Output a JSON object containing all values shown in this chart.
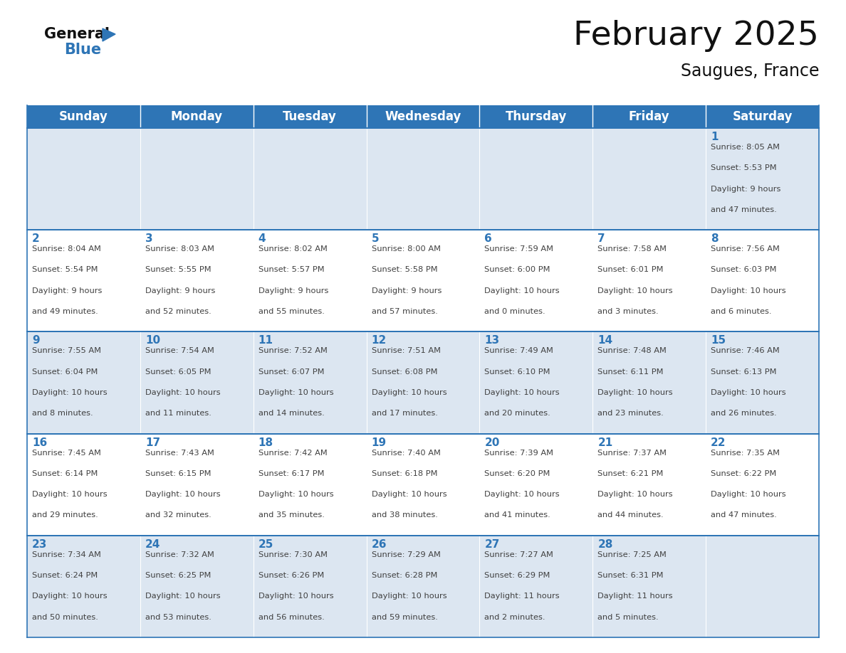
{
  "title": "February 2025",
  "subtitle": "Saugues, France",
  "header_bg_color": "#2e75b6",
  "header_text_color": "#ffffff",
  "days_of_week": [
    "Sunday",
    "Monday",
    "Tuesday",
    "Wednesday",
    "Thursday",
    "Friday",
    "Saturday"
  ],
  "bg_color": "#ffffff",
  "cell_bg_even": "#dce6f1",
  "cell_bg_odd": "#ffffff",
  "day_number_color": "#2e75b6",
  "text_color": "#404040",
  "grid_color": "#2e75b6",
  "calendar_data": [
    [
      null,
      null,
      null,
      null,
      null,
      null,
      {
        "day": 1,
        "sunrise": "8:05 AM",
        "sunset": "5:53 PM",
        "daylight": "9 hours and 47 minutes."
      }
    ],
    [
      {
        "day": 2,
        "sunrise": "8:04 AM",
        "sunset": "5:54 PM",
        "daylight": "9 hours and 49 minutes."
      },
      {
        "day": 3,
        "sunrise": "8:03 AM",
        "sunset": "5:55 PM",
        "daylight": "9 hours and 52 minutes."
      },
      {
        "day": 4,
        "sunrise": "8:02 AM",
        "sunset": "5:57 PM",
        "daylight": "9 hours and 55 minutes."
      },
      {
        "day": 5,
        "sunrise": "8:00 AM",
        "sunset": "5:58 PM",
        "daylight": "9 hours and 57 minutes."
      },
      {
        "day": 6,
        "sunrise": "7:59 AM",
        "sunset": "6:00 PM",
        "daylight": "10 hours and 0 minutes."
      },
      {
        "day": 7,
        "sunrise": "7:58 AM",
        "sunset": "6:01 PM",
        "daylight": "10 hours and 3 minutes."
      },
      {
        "day": 8,
        "sunrise": "7:56 AM",
        "sunset": "6:03 PM",
        "daylight": "10 hours and 6 minutes."
      }
    ],
    [
      {
        "day": 9,
        "sunrise": "7:55 AM",
        "sunset": "6:04 PM",
        "daylight": "10 hours and 8 minutes."
      },
      {
        "day": 10,
        "sunrise": "7:54 AM",
        "sunset": "6:05 PM",
        "daylight": "10 hours and 11 minutes."
      },
      {
        "day": 11,
        "sunrise": "7:52 AM",
        "sunset": "6:07 PM",
        "daylight": "10 hours and 14 minutes."
      },
      {
        "day": 12,
        "sunrise": "7:51 AM",
        "sunset": "6:08 PM",
        "daylight": "10 hours and 17 minutes."
      },
      {
        "day": 13,
        "sunrise": "7:49 AM",
        "sunset": "6:10 PM",
        "daylight": "10 hours and 20 minutes."
      },
      {
        "day": 14,
        "sunrise": "7:48 AM",
        "sunset": "6:11 PM",
        "daylight": "10 hours and 23 minutes."
      },
      {
        "day": 15,
        "sunrise": "7:46 AM",
        "sunset": "6:13 PM",
        "daylight": "10 hours and 26 minutes."
      }
    ],
    [
      {
        "day": 16,
        "sunrise": "7:45 AM",
        "sunset": "6:14 PM",
        "daylight": "10 hours and 29 minutes."
      },
      {
        "day": 17,
        "sunrise": "7:43 AM",
        "sunset": "6:15 PM",
        "daylight": "10 hours and 32 minutes."
      },
      {
        "day": 18,
        "sunrise": "7:42 AM",
        "sunset": "6:17 PM",
        "daylight": "10 hours and 35 minutes."
      },
      {
        "day": 19,
        "sunrise": "7:40 AM",
        "sunset": "6:18 PM",
        "daylight": "10 hours and 38 minutes."
      },
      {
        "day": 20,
        "sunrise": "7:39 AM",
        "sunset": "6:20 PM",
        "daylight": "10 hours and 41 minutes."
      },
      {
        "day": 21,
        "sunrise": "7:37 AM",
        "sunset": "6:21 PM",
        "daylight": "10 hours and 44 minutes."
      },
      {
        "day": 22,
        "sunrise": "7:35 AM",
        "sunset": "6:22 PM",
        "daylight": "10 hours and 47 minutes."
      }
    ],
    [
      {
        "day": 23,
        "sunrise": "7:34 AM",
        "sunset": "6:24 PM",
        "daylight": "10 hours and 50 minutes."
      },
      {
        "day": 24,
        "sunrise": "7:32 AM",
        "sunset": "6:25 PM",
        "daylight": "10 hours and 53 minutes."
      },
      {
        "day": 25,
        "sunrise": "7:30 AM",
        "sunset": "6:26 PM",
        "daylight": "10 hours and 56 minutes."
      },
      {
        "day": 26,
        "sunrise": "7:29 AM",
        "sunset": "6:28 PM",
        "daylight": "10 hours and 59 minutes."
      },
      {
        "day": 27,
        "sunrise": "7:27 AM",
        "sunset": "6:29 PM",
        "daylight": "11 hours and 2 minutes."
      },
      {
        "day": 28,
        "sunrise": "7:25 AM",
        "sunset": "6:31 PM",
        "daylight": "11 hours and 5 minutes."
      },
      null
    ]
  ],
  "logo_blue_color": "#2e75b6",
  "title_fontsize": 34,
  "subtitle_fontsize": 17,
  "header_fontsize": 12,
  "day_num_fontsize": 11,
  "cell_text_fontsize": 8.2
}
